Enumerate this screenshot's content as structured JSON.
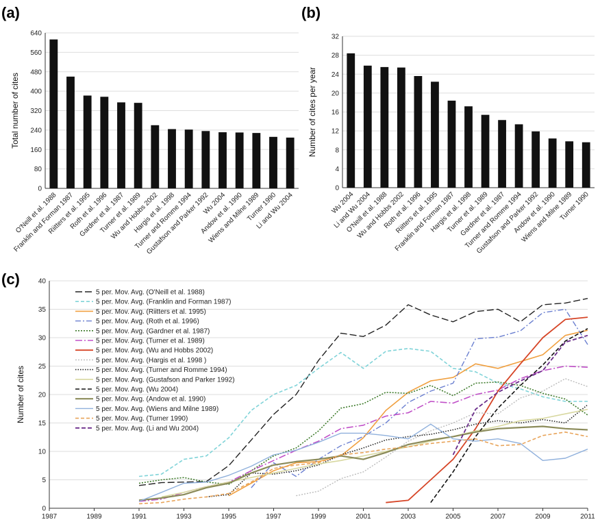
{
  "chart_data": [
    {
      "panel": "(a)",
      "type": "bar",
      "ylabel": "Total number of cites",
      "ylim": [
        0,
        640
      ],
      "yticks": [
        0,
        80,
        160,
        240,
        320,
        400,
        480,
        560,
        640
      ],
      "grid": true,
      "categories": [
        "O'Neill et al. 1988",
        "Franklin and Forman 1987",
        "Riitters et al. 1995",
        "Roth et al. 1996",
        "Gardner et al. 1987",
        "Turner et al. 1989",
        "Wu and Hobbs 2002",
        "Hargis et al. 1998",
        "Turner and Romme 1994",
        "Gustafson and Parker 1992",
        "Wu 2004",
        "Andow et al. 1990",
        "Wiens and Milne 1989",
        "Turner 1990",
        "Li and Wu 2004"
      ],
      "values": [
        613,
        460,
        382,
        377,
        354,
        352,
        260,
        244,
        242,
        236,
        231,
        230,
        228,
        212,
        209
      ],
      "color": "#111111"
    },
    {
      "panel": "(b)",
      "type": "bar",
      "ylabel": "Number of cites per year",
      "ylim": [
        0,
        32
      ],
      "yticks": [
        0,
        4,
        8,
        12,
        16,
        20,
        24,
        28,
        32
      ],
      "grid": true,
      "categories": [
        "Wu 2004",
        "Li and Wu 2004",
        "O'Neill et al. 1988",
        "Wu and Hobbs 2002",
        "Roth et al. 1996",
        "Riitters et al. 1995",
        "Franklin and Forman 1987",
        "Hargis et al. 1998",
        "Turner et al. 1989",
        "Gardner et al. 1987",
        "Turner and Romme 1994",
        "Gustafson and Parker 1992",
        "Andow et al. 1990",
        "Wiens and Milne 1989",
        "Turner 1990"
      ],
      "values": [
        28.4,
        25.8,
        25.5,
        25.4,
        23.6,
        22.4,
        18.4,
        17.2,
        15.4,
        14.3,
        13.4,
        11.9,
        10.4,
        9.8,
        9.6
      ],
      "color": "#111111"
    },
    {
      "panel": "(c)",
      "type": "line",
      "ylabel": "Number of cites",
      "xlim": [
        1987,
        2011
      ],
      "ylim": [
        0,
        40
      ],
      "xticks": [
        1987,
        1989,
        1991,
        1993,
        1995,
        1997,
        1999,
        2001,
        2003,
        2005,
        2007,
        2009,
        2011
      ],
      "yticks": [
        0,
        5,
        10,
        15,
        20,
        25,
        30,
        35,
        40
      ],
      "grid": true,
      "legend": "top-left",
      "series": [
        {
          "name": "5 per. Mov. Avg. (O'Neill et al. 1988)",
          "color": "#222222",
          "dash": "10,4",
          "width": 1.4,
          "x": [
            1991,
            1992,
            1993,
            1994,
            1995,
            1996,
            1997,
            1998,
            1999,
            2000,
            2001,
            2002,
            2003,
            2004,
            2005,
            2006,
            2007,
            2008,
            2009,
            2010,
            2011
          ],
          "y": [
            4,
            4.5,
            4.6,
            4.7,
            7.5,
            12,
            16.5,
            20,
            26,
            30.8,
            30.2,
            32.2,
            35.8,
            34,
            32.8,
            34.6,
            35,
            32.8,
            35.8,
            36.1,
            36.9
          ]
        },
        {
          "name": "5 per. Mov. Avg. (Franklin and Forman 1987)",
          "color": "#7fd3d8",
          "dash": "5,3",
          "width": 1.6,
          "x": [
            1991,
            1992,
            1993,
            1994,
            1995,
            1996,
            1997,
            1998,
            1999,
            2000,
            2001,
            2002,
            2003,
            2004,
            2005,
            2006,
            2007,
            2008,
            2009,
            2010,
            2011
          ],
          "y": [
            5.6,
            6,
            8.6,
            9.2,
            12.4,
            17.2,
            20,
            21.6,
            24.6,
            27.4,
            24.6,
            27.6,
            28.1,
            27.6,
            24.6,
            24,
            22,
            21,
            19.6,
            18.8,
            18.8
          ]
        },
        {
          "name": "5 per. Mov. Avg. (Riitters et al. 1995)",
          "color": "#f0a040",
          "dash": "",
          "width": 1.6,
          "x": [
            1995,
            1996,
            1997,
            1998,
            1999,
            2000,
            2001,
            2002,
            2003,
            2004,
            2005,
            2006,
            2007,
            2008,
            2009,
            2010,
            2011
          ],
          "y": [
            2.2,
            4.4,
            6.6,
            8,
            8.2,
            9.2,
            12.4,
            17.2,
            20.4,
            22.4,
            23,
            25.4,
            24.6,
            25.8,
            27,
            30.4,
            31.3
          ]
        },
        {
          "name": "5 per. Mov. Avg. (Roth et al. 1996)",
          "color": "#6a7fd0",
          "dash": "8,3,2,3",
          "width": 1.4,
          "x": [
            1996,
            1997,
            1998,
            1999,
            2000,
            2001,
            2002,
            2003,
            2004,
            2005,
            2006,
            2007,
            2008,
            2009,
            2010,
            2011
          ],
          "y": [
            3.6,
            8,
            5.6,
            8.6,
            11,
            12.6,
            15,
            18.6,
            20.6,
            22,
            29.8,
            30.1,
            31.2,
            34.4,
            35,
            28.8
          ]
        },
        {
          "name": "5 per. Mov. Avg. (Gardner et al. 1987)",
          "color": "#3d7a2a",
          "dash": "2,2",
          "width": 1.6,
          "x": [
            1991,
            1992,
            1993,
            1994,
            1995,
            1996,
            1997,
            1998,
            1999,
            2000,
            2001,
            2002,
            2003,
            2004,
            2005,
            2006,
            2007,
            2008,
            2009,
            2010,
            2011
          ],
          "y": [
            4.4,
            5,
            5.4,
            4.6,
            4.2,
            6.6,
            9.2,
            10.6,
            13.6,
            17.6,
            18.4,
            20.4,
            20.2,
            21.6,
            19.8,
            22,
            22.2,
            21.6,
            20.2,
            19.2,
            16.4
          ]
        },
        {
          "name": "5 per. Mov. Avg. (Turner et al. 1989)",
          "color": "#c050c8",
          "dash": "10,3,2,3",
          "width": 1.6,
          "x": [
            1991,
            1992,
            1993,
            1994,
            1995,
            1996,
            1997,
            1998,
            1999,
            2000,
            2001,
            2002,
            2003,
            2004,
            2005,
            2006,
            2007,
            2008,
            2009,
            2010,
            2011
          ],
          "y": [
            1.2,
            1.6,
            2.8,
            3.8,
            4.6,
            6.6,
            8.4,
            10.2,
            11.8,
            14,
            14.6,
            16.2,
            16.8,
            18.8,
            18.5,
            20,
            20.8,
            22.8,
            24.2,
            25,
            24.8
          ]
        },
        {
          "name": "5 per. Mov. Avg. (Wu and Hobbs 2002)",
          "color": "#d64527",
          "dash": "",
          "width": 1.8,
          "x": [
            2002,
            2003,
            2004,
            2005,
            2006,
            2007,
            2008,
            2009,
            2010,
            2011
          ],
          "y": [
            1,
            1.4,
            5,
            8.6,
            14,
            20.6,
            25.4,
            30,
            33.2,
            33.6
          ]
        },
        {
          "name": "5 per. Mov. Avg. (Hargis et al. 1998 )",
          "color": "#bbbbbb",
          "dash": "2,2",
          "width": 1.4,
          "x": [
            1998,
            1999,
            2000,
            2001,
            2002,
            2003,
            2004,
            2005,
            2006,
            2007,
            2008,
            2009,
            2010,
            2011
          ],
          "y": [
            2.2,
            3,
            5.2,
            6.4,
            9,
            11.8,
            13.6,
            15,
            16.8,
            16.6,
            19.4,
            20.6,
            22.8,
            21.4
          ]
        },
        {
          "name": "5 per. Mov. Avg. (Turner and Romme 1994)",
          "color": "#222222",
          "dash": "1.5,2",
          "width": 1.6,
          "x": [
            1994,
            1995,
            1996,
            1997,
            1998,
            1999,
            2000,
            2001,
            2002,
            2003,
            2004,
            2005,
            2006,
            2007,
            2008,
            2009,
            2010,
            2011
          ],
          "y": [
            2,
            2.4,
            6.2,
            6,
            6.6,
            7.6,
            9.4,
            10.6,
            12,
            12.6,
            13,
            13.8,
            14.8,
            15.4,
            15,
            15.6,
            15,
            18.2
          ]
        },
        {
          "name": "5 per. Mov. Avg. (Gustafson and Parker 1992)",
          "color": "#d8d8a0",
          "dash": "",
          "width": 1.6,
          "x": [
            1992,
            1993,
            1994,
            1995,
            1996,
            1997,
            1998,
            1999,
            2000,
            2001,
            2002,
            2003,
            2004,
            2005,
            2006,
            2007,
            2008,
            2009,
            2010,
            2011
          ],
          "y": [
            2,
            2.8,
            3.8,
            4.6,
            5.4,
            6.2,
            7,
            7.8,
            8.4,
            9.2,
            10,
            10.8,
            11.8,
            12.6,
            13.6,
            14.4,
            15.4,
            15.8,
            16.6,
            17.4
          ]
        },
        {
          "name": "5 per. Mov. Avg. (Wu 2004)",
          "color": "#111111",
          "dash": "6,3",
          "width": 1.6,
          "x": [
            2004,
            2005,
            2006,
            2007,
            2008,
            2009,
            2010,
            2011
          ],
          "y": [
            1,
            6.4,
            12.6,
            17.6,
            21.6,
            25.2,
            29.4,
            31.6
          ]
        },
        {
          "name": "5 per. Mov. Avg. (Andow et al. 1990)",
          "color": "#8b8b5a",
          "dash": "",
          "width": 2.2,
          "x": [
            1991,
            1992,
            1993,
            1994,
            1995,
            1996,
            1997,
            1998,
            1999,
            2000,
            2001,
            2002,
            2003,
            2004,
            2005,
            2006,
            2007,
            2008,
            2009,
            2010,
            2011
          ],
          "y": [
            1.4,
            1.8,
            2.4,
            3.6,
            4.4,
            6.2,
            7.6,
            8.2,
            8.6,
            9.2,
            8.6,
            9.8,
            11.2,
            12,
            12.6,
            13.4,
            14,
            14.2,
            14.4,
            14,
            13.8
          ]
        },
        {
          "name": "5 per. Mov. Avg. (Wiens and Milne 1989)",
          "color": "#8fb0dc",
          "dash": "",
          "width": 1.4,
          "x": [
            1991,
            1992,
            1993,
            1994,
            1995,
            1996,
            1997,
            1998,
            1999,
            2000,
            2001,
            2002,
            2003,
            2004,
            2005,
            2006,
            2007,
            2008,
            2009,
            2010,
            2011
          ],
          "y": [
            1.2,
            2.8,
            4.4,
            4.6,
            5.8,
            7.4,
            9.4,
            10.2,
            11.6,
            13.2,
            13.2,
            12.8,
            12.2,
            14.8,
            12.2,
            11.8,
            12.2,
            11.4,
            8.4,
            8.8,
            10.4
          ]
        },
        {
          "name": "5 per. Mov. Avg. (Turner 1990)",
          "color": "#e8a45a",
          "dash": "5,3",
          "width": 1.6,
          "x": [
            1991,
            1992,
            1993,
            1994,
            1995,
            1996,
            1997,
            1998,
            1999,
            2000,
            2001,
            2002,
            2003,
            2004,
            2005,
            2006,
            2007,
            2008,
            2009,
            2010,
            2011
          ],
          "y": [
            0.8,
            1,
            1.6,
            2,
            2.6,
            4.6,
            7,
            7.6,
            8,
            9.4,
            9.8,
            10.4,
            10.8,
            11.4,
            11.8,
            12.2,
            11,
            11.2,
            12.8,
            13.4,
            12.6
          ]
        },
        {
          "name": "5 per. Mov. Avg. (Li and Wu 2004)",
          "color": "#6a2c8a",
          "dash": "6,3",
          "width": 1.8,
          "x": [
            2005,
            2006,
            2007,
            2008,
            2009,
            2010,
            2011
          ],
          "y": [
            9.4,
            17.4,
            20.4,
            22.4,
            24.2,
            29.2,
            30.4
          ]
        }
      ]
    }
  ]
}
